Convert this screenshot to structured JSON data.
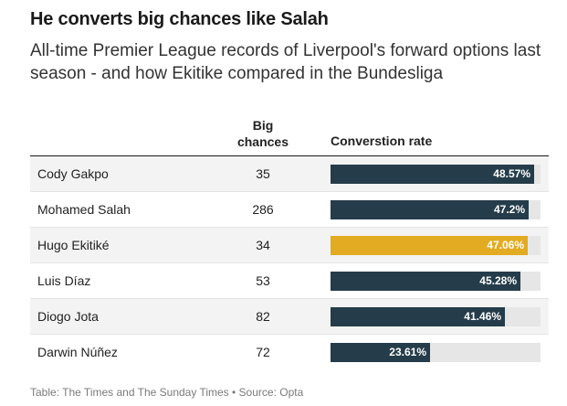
{
  "header": {
    "title": "He converts big chances like Salah",
    "subtitle": "All-time Premier League records of Liverpool's forward options last season - and how Ekitike compared in the Bundesliga"
  },
  "columns": {
    "big_chances_line1": "Big",
    "big_chances_line2": "chances",
    "rate": "Converstion rate"
  },
  "footer": "Table: The Times and The Sunday Times • Source: Opta",
  "colors": {
    "default_bar": "#253d4a",
    "highlight_bar": "#e2ab22",
    "track": "#e6e6e6"
  },
  "chart_data": {
    "type": "table",
    "xlim": [
      0,
      50
    ],
    "rows": [
      {
        "name": "Cody Gakpo",
        "big_chances": "35",
        "rate": 48.57,
        "rate_label": "48.57%",
        "highlight": false
      },
      {
        "name": "Mohamed Salah",
        "big_chances": "286",
        "rate": 47.2,
        "rate_label": "47.2%",
        "highlight": false
      },
      {
        "name": "Hugo Ekitiké",
        "big_chances": "34",
        "rate": 47.06,
        "rate_label": "47.06%",
        "highlight": true
      },
      {
        "name": "Luis Díaz",
        "big_chances": "53",
        "rate": 45.28,
        "rate_label": "45.28%",
        "highlight": false
      },
      {
        "name": "Diogo Jota",
        "big_chances": "82",
        "rate": 41.46,
        "rate_label": "41.46%",
        "highlight": false
      },
      {
        "name": "Darwin Núñez",
        "big_chances": "72",
        "rate": 23.61,
        "rate_label": "23.61%",
        "highlight": false
      }
    ]
  }
}
